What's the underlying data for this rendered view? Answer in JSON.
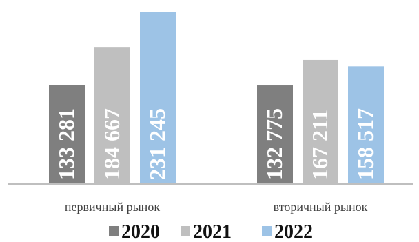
{
  "chart_data": {
    "type": "bar",
    "categories": [
      "первичный рынок",
      "вторичный рынок"
    ],
    "series": [
      {
        "name": "2020",
        "values": [
          133281,
          132775
        ],
        "labels": [
          "133 281",
          "132 775"
        ],
        "color": "#7f7f7f"
      },
      {
        "name": "2021",
        "values": [
          184667,
          167211
        ],
        "labels": [
          "184 667",
          "167 211"
        ],
        "color": "#bfbfbf"
      },
      {
        "name": "2022",
        "values": [
          231245,
          158517
        ],
        "labels": [
          "231 245",
          "158 517"
        ],
        "color": "#9dc3e6"
      }
    ],
    "title": "",
    "xlabel": "",
    "ylabel": "",
    "ylim": [
      0,
      240000
    ],
    "grid": false,
    "legend": "bottom"
  }
}
